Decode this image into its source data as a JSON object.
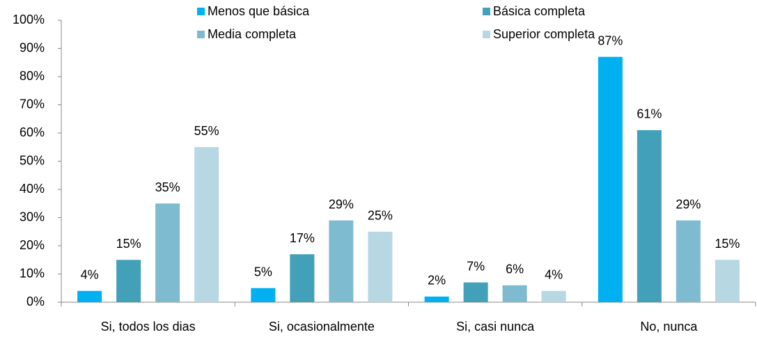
{
  "chart_data": {
    "type": "bar",
    "categories": [
      "Si, todos los dias",
      "Si, ocasionalmente",
      "Si, casi nunca",
      "No, nunca"
    ],
    "series": [
      {
        "name": "Menos que básica",
        "color": "#00b0f0",
        "values": [
          4,
          5,
          2,
          87
        ],
        "value_labels": [
          "4%",
          "5%",
          "2%",
          "87%"
        ]
      },
      {
        "name": "Básica completa",
        "color": "#42a0b8",
        "values": [
          15,
          17,
          7,
          61
        ],
        "value_labels": [
          "15%",
          "17%",
          "7%",
          "61%"
        ]
      },
      {
        "name": "Media completa",
        "color": "#7fbbd0",
        "values": [
          35,
          29,
          6,
          29
        ],
        "value_labels": [
          "35%",
          "29%",
          "6%",
          "29%"
        ]
      },
      {
        "name": "Superior completa",
        "color": "#b7d8e3",
        "values": [
          55,
          25,
          4,
          15
        ],
        "value_labels": [
          "55%",
          "25%",
          "4%",
          "15%"
        ]
      }
    ],
    "ylim": [
      0,
      100
    ],
    "yticks": [
      {
        "value": 0,
        "label": "0%"
      },
      {
        "value": 10,
        "label": "10%"
      },
      {
        "value": 20,
        "label": "20%"
      },
      {
        "value": 30,
        "label": "30%"
      },
      {
        "value": 40,
        "label": "40%"
      },
      {
        "value": 50,
        "label": "50%"
      },
      {
        "value": 60,
        "label": "60%"
      },
      {
        "value": 70,
        "label": "70%"
      },
      {
        "value": 80,
        "label": "80%"
      },
      {
        "value": 90,
        "label": "90%"
      },
      {
        "value": 100,
        "label": "100%"
      }
    ],
    "grid": false,
    "legend": "top"
  }
}
